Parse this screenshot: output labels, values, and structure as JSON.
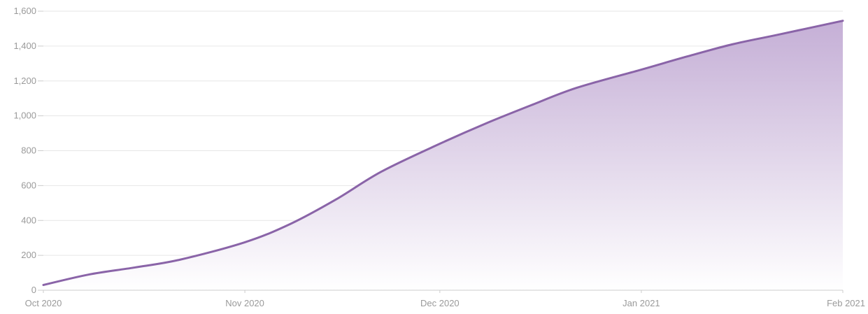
{
  "chart_data": {
    "type": "area",
    "title": "",
    "xlabel": "",
    "ylabel": "",
    "x": [
      "2020-10-01",
      "2020-10-08",
      "2020-10-15",
      "2020-10-22",
      "2020-11-01",
      "2020-11-08",
      "2020-11-15",
      "2020-11-22",
      "2020-12-01",
      "2020-12-08",
      "2020-12-15",
      "2020-12-22",
      "2021-01-01",
      "2021-01-08",
      "2021-01-15",
      "2021-01-22",
      "2021-02-01"
    ],
    "series": [
      {
        "values": [
          30,
          90,
          130,
          175,
          275,
          380,
          520,
          680,
          840,
          955,
          1060,
          1160,
          1265,
          1340,
          1410,
          1465,
          1545
        ]
      }
    ],
    "x_ticks": [
      {
        "label": "Oct 2020",
        "date": "2020-10-01"
      },
      {
        "label": "Nov 2020",
        "date": "2020-11-01"
      },
      {
        "label": "Dec 2020",
        "date": "2020-12-01"
      },
      {
        "label": "Jan 2021",
        "date": "2021-01-01"
      },
      {
        "label": "Feb 2021",
        "date": "2021-02-01"
      }
    ],
    "y_ticks": [
      {
        "label": "0",
        "value": 0
      },
      {
        "label": "200",
        "value": 200
      },
      {
        "label": "400",
        "value": 400
      },
      {
        "label": "600",
        "value": 600
      },
      {
        "label": "800",
        "value": 800
      },
      {
        "label": "1,000",
        "value": 1000
      },
      {
        "label": "1,200",
        "value": 1200
      },
      {
        "label": "1,400",
        "value": 1400
      },
      {
        "label": "1,600",
        "value": 1600
      }
    ],
    "ylim": [
      0,
      1600
    ],
    "xlim": [
      "2020-10-01",
      "2021-02-01"
    ],
    "grid": true,
    "legend": "none",
    "colors": {
      "line": "#8a64a8",
      "fill_top": "#c2abd4",
      "fill_bottom": "#ffffff",
      "grid": "#e6e6e6",
      "axis": "#cccccc",
      "tick_label": "#9a9a9a"
    }
  }
}
